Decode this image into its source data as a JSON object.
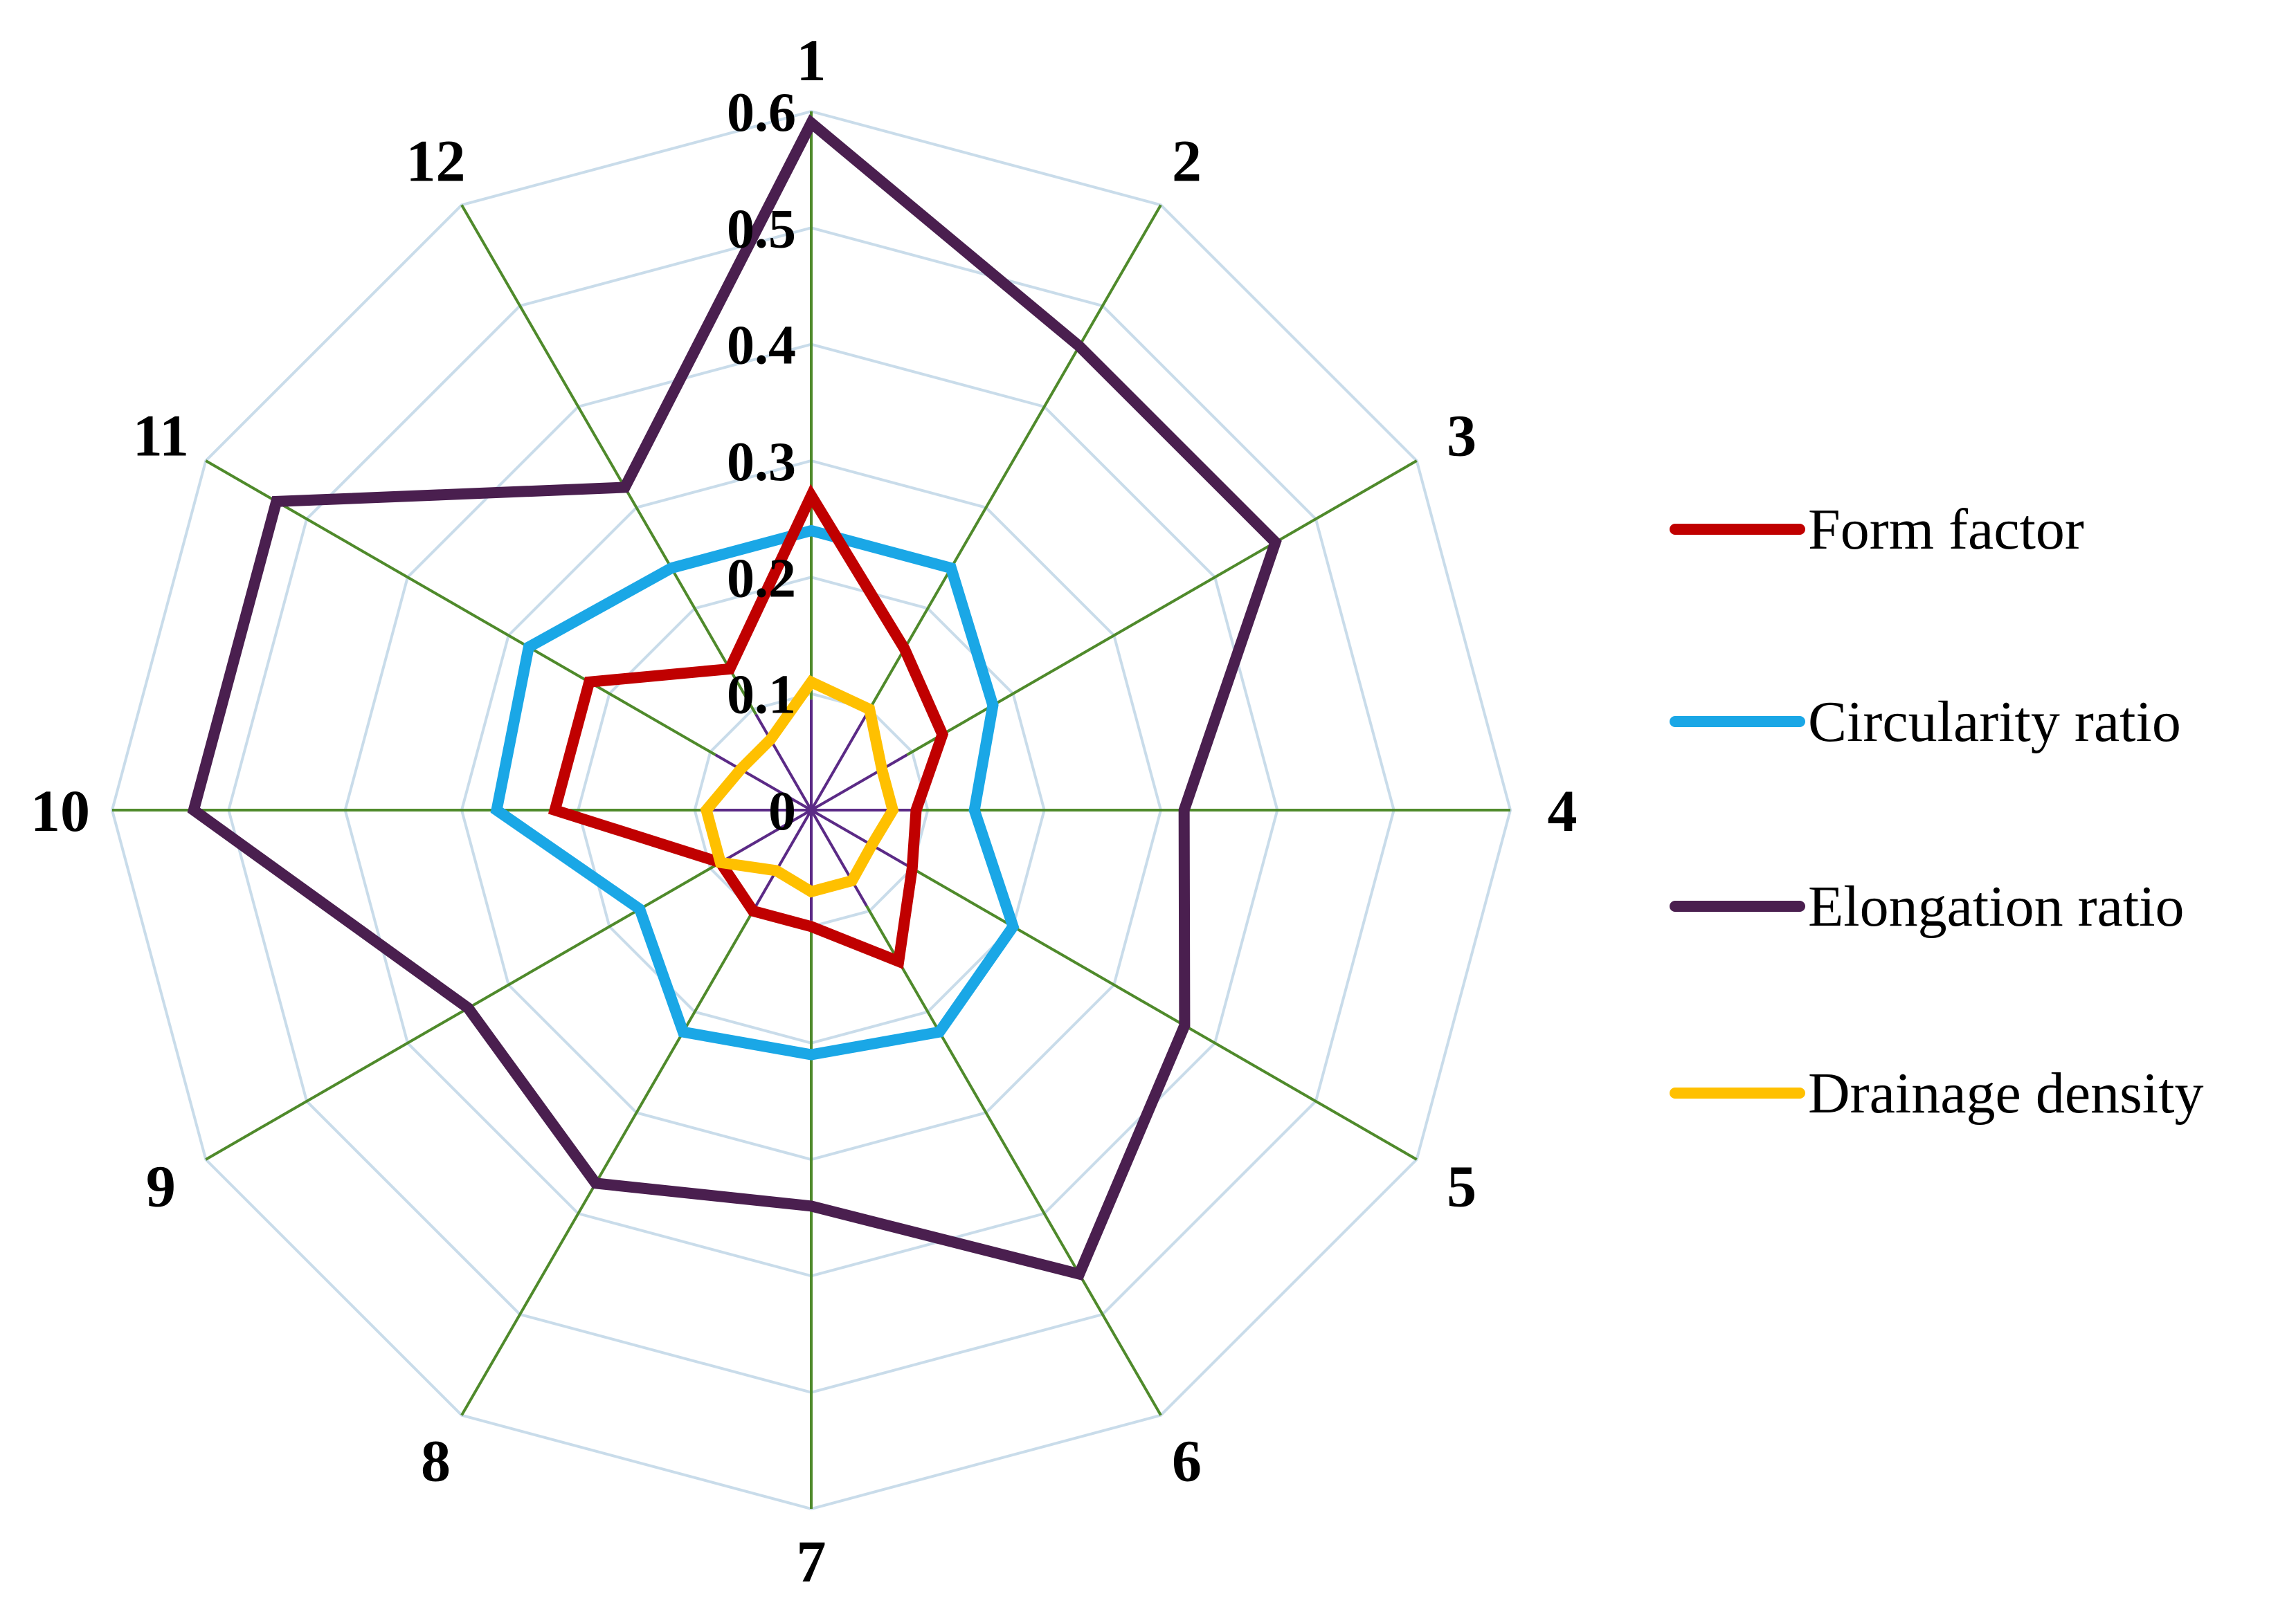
{
  "chart_data": {
    "type": "radar",
    "categories": [
      "1",
      "2",
      "3",
      "4",
      "5",
      "6",
      "7",
      "8",
      "9",
      "10",
      "11",
      "12"
    ],
    "r_ticks": [
      "0",
      "0.1",
      "0.2",
      "0.3",
      "0.4",
      "0.5",
      "0.6"
    ],
    "rlim": [
      0,
      0.6
    ],
    "grid": true,
    "legend_position": "right",
    "series": [
      {
        "name": "Elongation ratio",
        "color": "#4a1f4f",
        "values": [
          0.59,
          0.46,
          0.46,
          0.32,
          0.37,
          0.46,
          0.34,
          0.37,
          0.34,
          0.53,
          0.53,
          0.32
        ]
      },
      {
        "name": "Circularity ratio",
        "color": "#1aa7e6",
        "values": [
          0.24,
          0.24,
          0.18,
          0.14,
          0.2,
          0.22,
          0.21,
          0.22,
          0.17,
          0.27,
          0.28,
          0.24
        ]
      },
      {
        "name": "Form factor",
        "color": "#c00000",
        "values": [
          0.27,
          0.16,
          0.13,
          0.09,
          0.1,
          0.15,
          0.1,
          0.1,
          0.09,
          0.22,
          0.22,
          0.14
        ]
      },
      {
        "name": "Drainage density",
        "color": "#ffc000",
        "values": [
          0.11,
          0.1,
          0.07,
          0.07,
          0.06,
          0.07,
          0.07,
          0.06,
          0.09,
          0.09,
          0.07,
          0.07
        ]
      }
    ],
    "legend_order": [
      "Form factor",
      "Circularity ratio",
      "Elongation ratio",
      "Drainage density"
    ],
    "grid_color": "#c9dcea",
    "spoke_color": "#4f8a2b",
    "center_spoke_color": "#5b2a86"
  }
}
